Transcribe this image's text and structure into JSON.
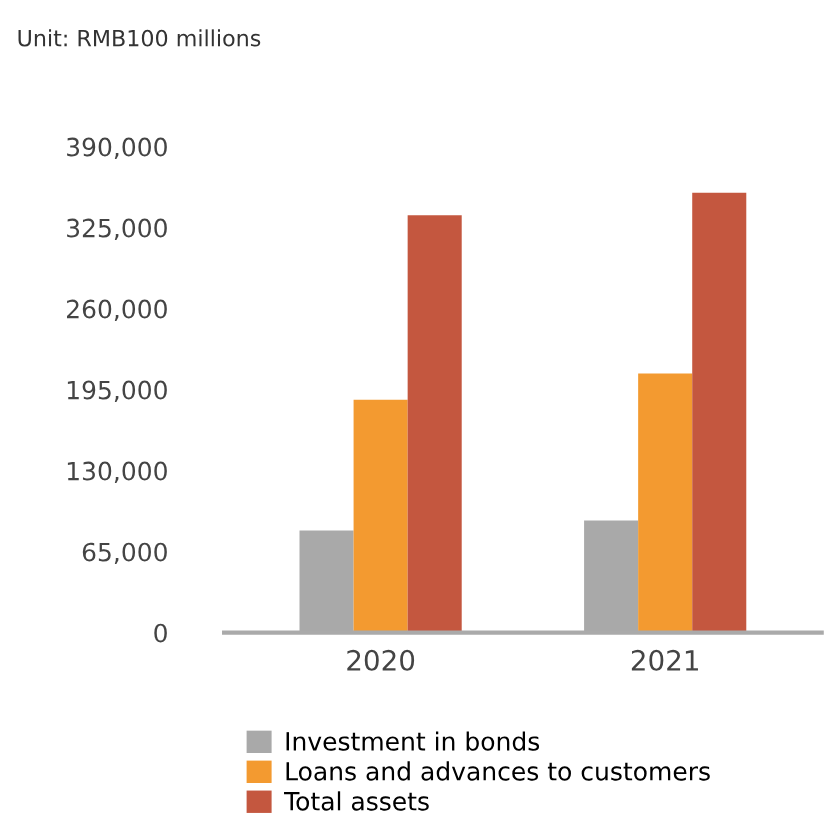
{
  "chart_data": {
    "type": "bar",
    "annotations": [
      "Unit: RMB100 millions"
    ],
    "categories": [
      "2020",
      "2021"
    ],
    "series": [
      {
        "name": "Investment in bonds",
        "color": "#a9a9a9",
        "values": [
          82000,
          90000
        ]
      },
      {
        "name": "Loans and advances to customers",
        "color": "#f39a30",
        "values": [
          187000,
          208000
        ]
      },
      {
        "name": "Total assets",
        "color": "#c4573f",
        "values": [
          335000,
          353000
        ]
      }
    ],
    "ylim": [
      0,
      390000
    ],
    "yticks": [
      {
        "value": 0,
        "label": "0"
      },
      {
        "value": 65000,
        "label": "65,000"
      },
      {
        "value": 130000,
        "label": "130,000"
      },
      {
        "value": 195000,
        "label": "195,000"
      },
      {
        "value": 260000,
        "label": "260,000"
      },
      {
        "value": 325000,
        "label": "325,000"
      },
      {
        "value": 390000,
        "label": "390,000"
      }
    ],
    "grid": false,
    "legend": "bottom"
  }
}
